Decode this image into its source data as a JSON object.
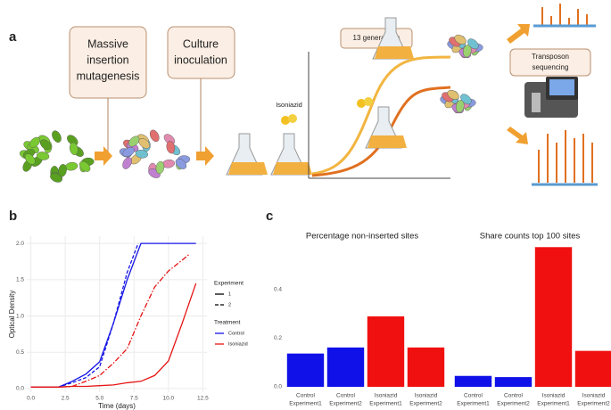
{
  "diagram": {
    "panel_labels": [
      "a",
      "b",
      "c"
    ],
    "steps": [
      [
        "Massive",
        "insertion",
        "mutagenesis"
      ],
      [
        "Culture",
        "inoculation"
      ]
    ],
    "drug": "Isoniazid",
    "generations": "13 generations",
    "sequencing": [
      "Transposon",
      "sequencing"
    ]
  },
  "chart_data": [
    {
      "type": "line",
      "xlabel": "Time (days)",
      "ylabel": "Optical Density",
      "xlim": [
        -0.3,
        12.8
      ],
      "ylim": [
        -0.05,
        2.1
      ],
      "xticks": [
        {
          "value": 0,
          "label": "0.0"
        },
        2.5,
        {
          "value": 5,
          "label": "5.0"
        },
        7.5,
        {
          "value": 10,
          "label": "10.0"
        },
        12.5
      ],
      "yticks": [
        {
          "value": 0,
          "label": "0.0"
        },
        0.5,
        {
          "value": 1,
          "label": "1.0"
        },
        1.5,
        {
          "value": 2,
          "label": "2.0"
        }
      ],
      "grid": true,
      "legend": [
        {
          "title": "Experiment",
          "items": [
            {
              "label": "1",
              "dash": "none"
            },
            {
              "label": "2",
              "dash": "4 2"
            }
          ]
        },
        {
          "title": "Treatment",
          "items": [
            {
              "label": "Control",
              "color": "#1414e6"
            },
            {
              "label": "Isoniazid",
              "color": "#e61414"
            }
          ]
        }
      ],
      "series": [
        {
          "color": "#1414e6",
          "dash": "none",
          "x": [
            0,
            1,
            2,
            3,
            4,
            5,
            6,
            7,
            8,
            9,
            10,
            11,
            12
          ],
          "values": [
            0.02,
            0.02,
            0.02,
            0.1,
            0.2,
            0.37,
            0.9,
            1.5,
            2.0,
            2.0,
            2.0,
            2.0,
            2.0
          ]
        },
        {
          "color": "#1414e6",
          "dash": "4 2",
          "x": [
            0,
            1,
            2,
            3,
            4,
            5,
            6,
            7,
            7.8
          ],
          "values": [
            0.02,
            0.02,
            0.02,
            0.08,
            0.15,
            0.3,
            0.9,
            1.6,
            2.0
          ]
        },
        {
          "color": "#e61414",
          "dash": "none",
          "x": [
            0,
            1,
            2,
            3,
            4,
            5,
            6,
            7,
            8,
            9,
            10,
            11,
            12
          ],
          "values": [
            0.02,
            0.02,
            0.02,
            0.03,
            0.03,
            0.04,
            0.05,
            0.08,
            0.1,
            0.18,
            0.38,
            0.9,
            1.45
          ]
        },
        {
          "color": "#e61414",
          "dash": "6 2 1.5 2",
          "x": [
            0,
            1,
            2,
            3,
            4,
            5,
            6,
            7,
            8,
            9,
            10,
            11,
            11.5
          ],
          "values": [
            0.02,
            0.02,
            0.02,
            0.03,
            0.1,
            0.18,
            0.35,
            0.55,
            1.0,
            1.4,
            1.62,
            1.77,
            1.85
          ]
        }
      ]
    },
    {
      "type": "bar",
      "title": "Percentage non-inserted sites",
      "categories": [
        [
          "Control",
          "Experiment1"
        ],
        [
          "Control",
          "Experiment2"
        ],
        [
          "Isoniazid",
          "Experiment1"
        ],
        [
          "Isoniazid",
          "Experiment2"
        ]
      ],
      "values": [
        0.137,
        0.162,
        0.29,
        0.162
      ],
      "colors": [
        "#1010e8",
        "#1010e8",
        "#f01010",
        "#f01010"
      ],
      "ylim": [
        0,
        0.62
      ],
      "yticks": [
        {
          "value": 0,
          "label": "0.0"
        },
        0.2,
        0.4
      ]
    },
    {
      "type": "bar",
      "title": "Share counts top 100 sites",
      "categories": [
        [
          "Control",
          "Experiment1"
        ],
        [
          "Control",
          "Experiment2"
        ],
        [
          "Isoniazid",
          "Experiment1"
        ],
        [
          "Isoniazid",
          "Experiment2"
        ]
      ],
      "values": [
        0.045,
        0.04,
        0.575,
        0.148
      ],
      "colors": [
        "#1010e8",
        "#1010e8",
        "#f01010",
        "#f01010"
      ],
      "ylim": [
        0,
        0.62
      ]
    }
  ]
}
